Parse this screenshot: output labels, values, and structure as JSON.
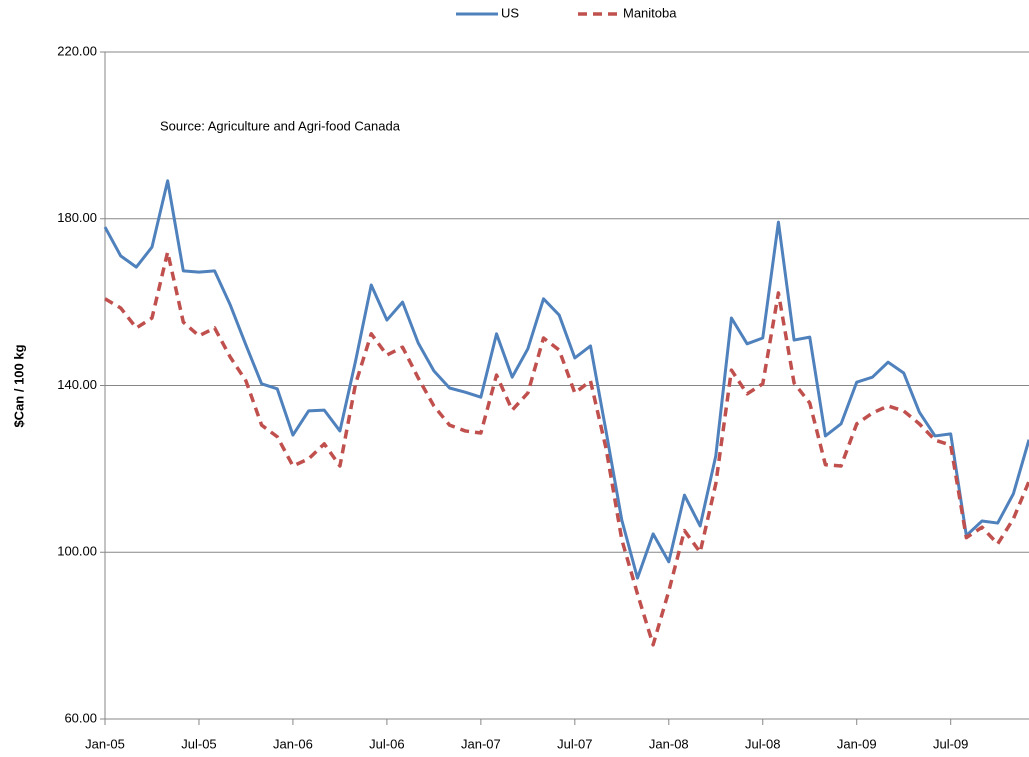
{
  "chart_data": {
    "type": "line",
    "annotation": "Source: Agriculture and Agri-food Canada",
    "y_label": "$Can / 100 kg",
    "categories": [
      "Jan-05",
      null,
      null,
      null,
      null,
      null,
      "Jul-05",
      null,
      null,
      null,
      null,
      null,
      "Jan-06",
      null,
      null,
      null,
      null,
      null,
      "Jul-06",
      null,
      null,
      null,
      null,
      null,
      "Jan-07",
      null,
      null,
      null,
      null,
      null,
      "Jul-07",
      null,
      null,
      null,
      null,
      null,
      "Jan-08",
      null,
      null,
      null,
      null,
      null,
      "Jul-08",
      null,
      null,
      null,
      null,
      null,
      "Jan-09",
      null,
      null,
      null,
      null,
      null,
      "Jul-09",
      null,
      null,
      null,
      null,
      null
    ],
    "series": [
      {
        "name": "US",
        "color": "#4f81bd",
        "dashed": false,
        "values": [
          178.0,
          171.1,
          168.4,
          173.2,
          189.1,
          167.5,
          167.2,
          167.5,
          159.3,
          149.7,
          140.4,
          139.2,
          128.1,
          133.9,
          134.1,
          129.1,
          145.9,
          164.1,
          155.7,
          160.0,
          150.2,
          143.5,
          139.4,
          138.4,
          137.2,
          152.4,
          142.0,
          148.8,
          160.8,
          156.9,
          146.6,
          149.5,
          128.9,
          107.7,
          93.8,
          104.4,
          97.7,
          113.7,
          106.3,
          123.1,
          156.2,
          150.0,
          151.4,
          179.2,
          150.9,
          151.6,
          127.9,
          130.8,
          140.8,
          142.0,
          145.6,
          143.0,
          133.6,
          127.9,
          128.4,
          104.0,
          107.5,
          107.0,
          114.0,
          127.0
        ]
      },
      {
        "name": "Manitoba",
        "color": "#c0504d",
        "dashed": true,
        "values": [
          160.8,
          158.6,
          153.8,
          156.2,
          172.0,
          155.2,
          151.9,
          153.8,
          146.8,
          141.1,
          130.5,
          127.7,
          120.7,
          122.4,
          126.0,
          120.7,
          140.4,
          152.4,
          147.3,
          149.2,
          141.8,
          135.1,
          130.5,
          129.1,
          128.6,
          142.5,
          134.1,
          138.2,
          151.4,
          148.5,
          138.2,
          141.1,
          124.8,
          103.0,
          90.0,
          77.8,
          90.7,
          105.2,
          100.0,
          116.4,
          143.7,
          138.0,
          140.4,
          162.2,
          140.6,
          135.8,
          121.0,
          120.7,
          130.8,
          133.4,
          135.1,
          133.9,
          130.8,
          126.9,
          125.7,
          103.5,
          106.0,
          102.0,
          108.0,
          117.0
        ]
      }
    ],
    "ylim": [
      60,
      220
    ],
    "yticks": [
      {
        "value": 60,
        "label": "60.00"
      },
      {
        "value": 100,
        "label": "100.00"
      },
      {
        "value": 140,
        "label": "140.00"
      },
      {
        "value": 180,
        "label": "180.00"
      },
      {
        "value": 220,
        "label": "220.00"
      }
    ],
    "grid": true,
    "legend": "top"
  }
}
